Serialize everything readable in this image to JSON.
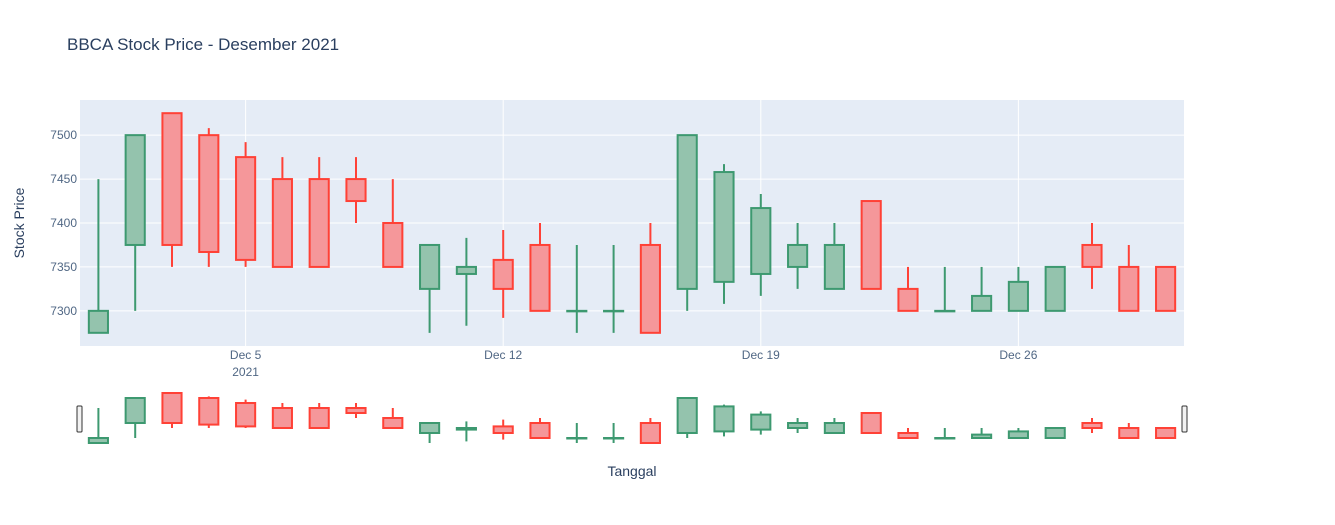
{
  "chart_data": {
    "type": "candlestick",
    "title": "BBCA Stock Price - Desember 2021",
    "xlabel": "Tanggal",
    "ylabel": "Stock Price",
    "x_ticks": [
      {
        "date": "2021-12-05",
        "label": "Dec 5",
        "sublabel": "2021"
      },
      {
        "date": "2021-12-12",
        "label": "Dec 12",
        "sublabel": ""
      },
      {
        "date": "2021-12-19",
        "label": "Dec 19",
        "sublabel": ""
      },
      {
        "date": "2021-12-26",
        "label": "Dec 26",
        "sublabel": ""
      }
    ],
    "y_ticks": [
      7300,
      7350,
      7400,
      7450,
      7500
    ],
    "xlim": [
      "2021-11-30T12:00",
      "2021-12-30T12:00"
    ],
    "ylim": [
      7260,
      7540
    ],
    "grid": true,
    "range_slider": true,
    "colors": {
      "increasing": "#3d9970",
      "increasing_fill": "#94c3ad",
      "decreasing": "#ff4136",
      "decreasing_fill": "#f5979a",
      "plot_bg": "#e5ecf6",
      "grid": "#ffffff",
      "text": "#2a3f5f",
      "axis_text": "#506784"
    },
    "candles": [
      {
        "date": "2021-12-01",
        "open": 7275,
        "high": 7450,
        "low": 7275,
        "close": 7300
      },
      {
        "date": "2021-12-02",
        "open": 7375,
        "high": 7500,
        "low": 7300,
        "close": 7500
      },
      {
        "date": "2021-12-03",
        "open": 7525,
        "high": 7525,
        "low": 7350,
        "close": 7375
      },
      {
        "date": "2021-12-04",
        "open": 7500,
        "high": 7508,
        "low": 7350,
        "close": 7367
      },
      {
        "date": "2021-12-05",
        "open": 7475,
        "high": 7492,
        "low": 7350,
        "close": 7358
      },
      {
        "date": "2021-12-06",
        "open": 7450,
        "high": 7475,
        "low": 7350,
        "close": 7350
      },
      {
        "date": "2021-12-07",
        "open": 7450,
        "high": 7475,
        "low": 7350,
        "close": 7350
      },
      {
        "date": "2021-12-08",
        "open": 7450,
        "high": 7475,
        "low": 7400,
        "close": 7425
      },
      {
        "date": "2021-12-09",
        "open": 7400,
        "high": 7450,
        "low": 7350,
        "close": 7350
      },
      {
        "date": "2021-12-10",
        "open": 7325,
        "high": 7375,
        "low": 7275,
        "close": 7375
      },
      {
        "date": "2021-12-11",
        "open": 7342,
        "high": 7383,
        "low": 7283,
        "close": 7350
      },
      {
        "date": "2021-12-12",
        "open": 7358,
        "high": 7392,
        "low": 7292,
        "close": 7325
      },
      {
        "date": "2021-12-13",
        "open": 7375,
        "high": 7400,
        "low": 7300,
        "close": 7300
      },
      {
        "date": "2021-12-14",
        "open": 7300,
        "high": 7375,
        "low": 7275,
        "close": 7300
      },
      {
        "date": "2021-12-15",
        "open": 7300,
        "high": 7375,
        "low": 7275,
        "close": 7300
      },
      {
        "date": "2021-12-16",
        "open": 7375,
        "high": 7400,
        "low": 7275,
        "close": 7275
      },
      {
        "date": "2021-12-17",
        "open": 7325,
        "high": 7500,
        "low": 7300,
        "close": 7500
      },
      {
        "date": "2021-12-18",
        "open": 7333,
        "high": 7467,
        "low": 7308,
        "close": 7458
      },
      {
        "date": "2021-12-19",
        "open": 7342,
        "high": 7433,
        "low": 7317,
        "close": 7417
      },
      {
        "date": "2021-12-20",
        "open": 7350,
        "high": 7400,
        "low": 7325,
        "close": 7375
      },
      {
        "date": "2021-12-21",
        "open": 7325,
        "high": 7400,
        "low": 7325,
        "close": 7375
      },
      {
        "date": "2021-12-22",
        "open": 7425,
        "high": 7425,
        "low": 7325,
        "close": 7325
      },
      {
        "date": "2021-12-23",
        "open": 7325,
        "high": 7350,
        "low": 7300,
        "close": 7300
      },
      {
        "date": "2021-12-24",
        "open": 7300,
        "high": 7350,
        "low": 7300,
        "close": 7300
      },
      {
        "date": "2021-12-25",
        "open": 7300,
        "high": 7350,
        "low": 7300,
        "close": 7317
      },
      {
        "date": "2021-12-26",
        "open": 7300,
        "high": 7350,
        "low": 7300,
        "close": 7333
      },
      {
        "date": "2021-12-27",
        "open": 7300,
        "high": 7350,
        "low": 7300,
        "close": 7350
      },
      {
        "date": "2021-12-28",
        "open": 7375,
        "high": 7400,
        "low": 7325,
        "close": 7350
      },
      {
        "date": "2021-12-29",
        "open": 7350,
        "high": 7375,
        "low": 7300,
        "close": 7300
      },
      {
        "date": "2021-12-30",
        "open": 7350,
        "high": 7350,
        "low": 7300,
        "close": 7300
      }
    ]
  }
}
